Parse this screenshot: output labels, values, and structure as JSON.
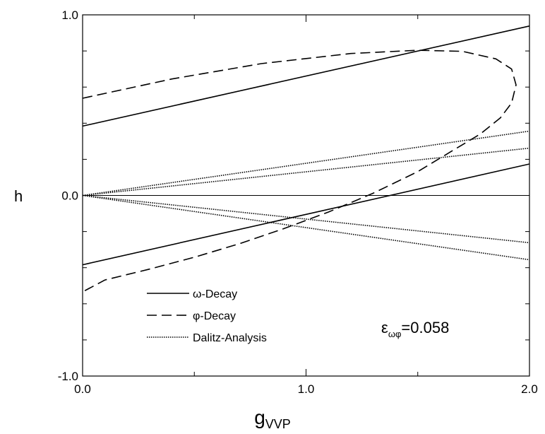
{
  "chart_data": {
    "type": "line",
    "xlabel_main": "g",
    "xlabel_sub": "VVP",
    "ylabel": "h",
    "xlim": [
      0,
      2
    ],
    "ylim": [
      -1,
      1
    ],
    "x_tick_labels": [
      "0.0",
      "1.0",
      "2.0"
    ],
    "y_tick_labels": [
      "1.0",
      "0.0",
      "-1.0"
    ],
    "x_major_ticks": [
      0,
      1,
      2
    ],
    "x_minor_ticks": [
      0.5,
      1.5
    ],
    "y_major_ticks": [
      -1,
      0,
      1
    ],
    "y_minor_ticks": [
      -0.8,
      -0.6,
      -0.4,
      -0.2,
      0.2,
      0.4,
      0.6,
      0.8
    ],
    "zero_line": true,
    "legend_position": "bottom-left",
    "annotation": {
      "symbol": "ε",
      "subscript": "ωφ",
      "value_text": "=0.058"
    },
    "series": [
      {
        "name": "ω-Decay",
        "style": "solid",
        "segments": [
          {
            "x": [
              0,
              2
            ],
            "y": [
              0.384,
              0.938
            ]
          },
          {
            "x": [
              0,
              2
            ],
            "y": [
              -0.384,
              0.174
            ]
          }
        ]
      },
      {
        "name": "φ-Decay",
        "style": "dashed",
        "segments": [
          {
            "x": [
              0,
              0.4,
              0.8,
              1.2,
              1.5,
              1.7,
              1.85,
              1.92,
              1.94,
              1.92,
              1.87,
              1.78,
              1.65,
              1.5,
              1.3,
              1.1,
              0.9,
              0.7,
              0.5,
              0.3,
              0.1,
              0
            ],
            "y": [
              0.538,
              0.645,
              0.73,
              0.786,
              0.804,
              0.798,
              0.756,
              0.7,
              0.612,
              0.512,
              0.43,
              0.34,
              0.244,
              0.132,
              0.012,
              -0.092,
              -0.184,
              -0.268,
              -0.342,
              -0.408,
              -0.468,
              -0.534
            ]
          }
        ]
      },
      {
        "name": "Dalitz-Analysis",
        "style": "dotted",
        "segments": [
          {
            "x": [
              0,
              2
            ],
            "y": [
              0,
              0.356
            ]
          },
          {
            "x": [
              0,
              2
            ],
            "y": [
              0,
              0.262
            ]
          },
          {
            "x": [
              0,
              2
            ],
            "y": [
              0,
              -0.262
            ]
          },
          {
            "x": [
              0,
              2
            ],
            "y": [
              0,
              -0.356
            ]
          }
        ]
      }
    ]
  }
}
